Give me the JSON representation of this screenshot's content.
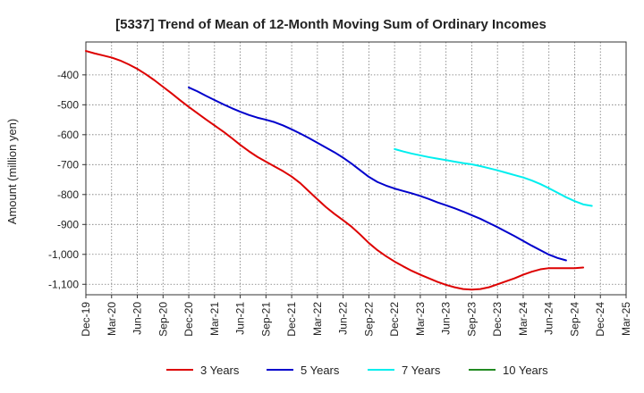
{
  "chart_data": {
    "type": "line",
    "title": "[5337]  Trend of Mean of 12-Month Moving Sum of Ordinary Incomes",
    "ylabel": "Amount (million yen)",
    "xlabel": "",
    "ylim": [
      -1135,
      -290
    ],
    "yticks": [
      -400,
      -500,
      -600,
      -700,
      -800,
      -900,
      -1000,
      -1100
    ],
    "ytick_labels": [
      "-400",
      "-500",
      "-600",
      "-700",
      "-800",
      "-900",
      "-1,000",
      "-1,100"
    ],
    "x_start": "Dec-19",
    "x_months_span": 63,
    "xticks": [
      "Dec-19",
      "Mar-20",
      "Jun-20",
      "Sep-20",
      "Dec-20",
      "Mar-21",
      "Jun-21",
      "Sep-21",
      "Dec-21",
      "Mar-22",
      "Jun-22",
      "Sep-22",
      "Dec-22",
      "Mar-23",
      "Jun-23",
      "Sep-23",
      "Dec-23",
      "Mar-24",
      "Jun-24",
      "Sep-24",
      "Dec-24",
      "Mar-25"
    ],
    "grid": true,
    "legend_position": "bottom",
    "series": [
      {
        "name": "3 Years",
        "color": "#dd0000",
        "start_month_index": 0,
        "values": [
          -320,
          -328,
          -335,
          -342,
          -352,
          -365,
          -380,
          -398,
          -418,
          -440,
          -462,
          -485,
          -507,
          -528,
          -549,
          -569,
          -589,
          -611,
          -634,
          -655,
          -674,
          -690,
          -706,
          -722,
          -740,
          -762,
          -789,
          -816,
          -842,
          -865,
          -886,
          -908,
          -934,
          -962,
          -986,
          -1006,
          -1024,
          -1040,
          -1055,
          -1068,
          -1080,
          -1092,
          -1102,
          -1110,
          -1116,
          -1118,
          -1116,
          -1110,
          -1100,
          -1090,
          -1080,
          -1068,
          -1058,
          -1050,
          -1046,
          -1046,
          -1046,
          -1046,
          -1044
        ]
      },
      {
        "name": "5 Years",
        "color": "#0000cc",
        "start_month_index": 12,
        "values": [
          -442,
          -455,
          -470,
          -484,
          -498,
          -511,
          -523,
          -534,
          -543,
          -550,
          -558,
          -569,
          -582,
          -596,
          -611,
          -627,
          -643,
          -659,
          -677,
          -697,
          -719,
          -741,
          -758,
          -770,
          -780,
          -788,
          -796,
          -805,
          -815,
          -826,
          -836,
          -846,
          -857,
          -869,
          -881,
          -895,
          -909,
          -924,
          -939,
          -955,
          -971,
          -986,
          -1001,
          -1012,
          -1020
        ]
      },
      {
        "name": "7 Years",
        "color": "#00eeee",
        "start_month_index": 36,
        "values": [
          -648,
          -656,
          -663,
          -669,
          -675,
          -680,
          -685,
          -690,
          -695,
          -699,
          -705,
          -712,
          -719,
          -727,
          -735,
          -743,
          -753,
          -765,
          -779,
          -794,
          -809,
          -822,
          -833,
          -838
        ]
      },
      {
        "name": "10 Years",
        "color": "#228b22",
        "start_month_index": 0,
        "values": []
      }
    ]
  }
}
